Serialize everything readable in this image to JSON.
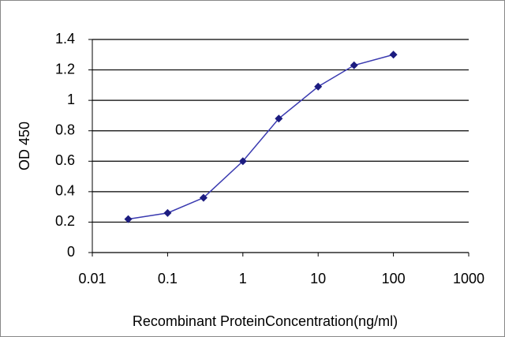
{
  "chart_data": {
    "type": "line",
    "x": [
      0.03,
      0.1,
      0.3,
      1,
      3,
      10,
      30,
      100
    ],
    "values": [
      0.22,
      0.26,
      0.36,
      0.6,
      0.88,
      1.09,
      1.23,
      1.3
    ],
    "color": "#3a3ab0",
    "marker_color": "#1c1c80",
    "xlim": [
      0.01,
      1000
    ],
    "xticks": [
      0.01,
      0.1,
      1,
      10,
      100,
      1000
    ],
    "xlog": true,
    "ylim": [
      0,
      1.4
    ],
    "yticks": [
      0,
      0.2,
      0.4,
      0.6,
      0.8,
      1,
      1.2,
      1.4
    ],
    "grid": true,
    "xlabel": "Recombinant ProteinConcentration(ng/ml)",
    "ylabel": "OD 450"
  }
}
